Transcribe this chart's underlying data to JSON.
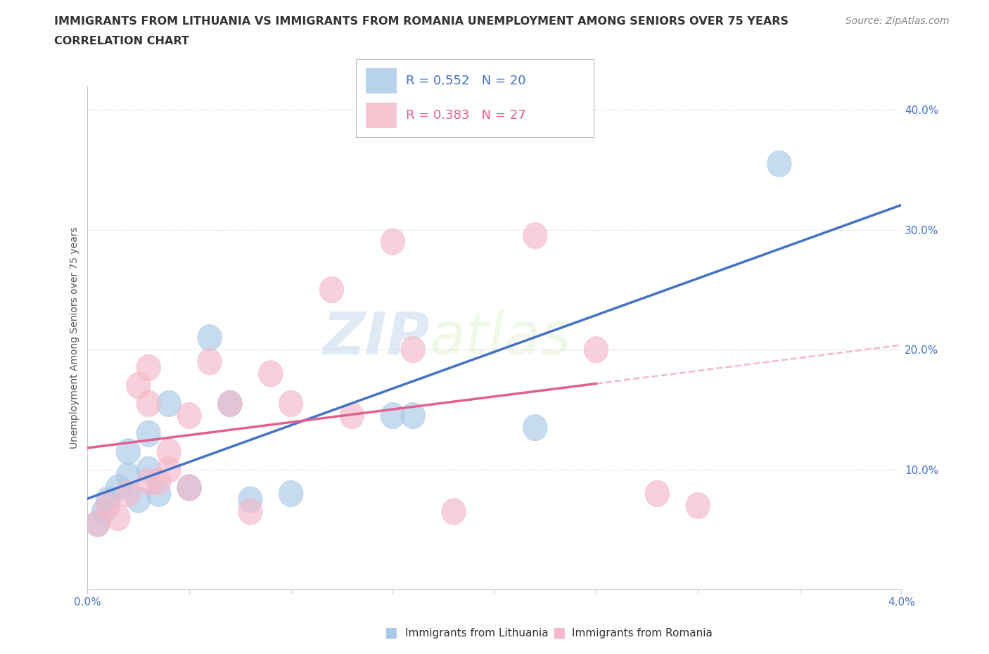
{
  "title_line1": "IMMIGRANTS FROM LITHUANIA VS IMMIGRANTS FROM ROMANIA UNEMPLOYMENT AMONG SENIORS OVER 75 YEARS",
  "title_line2": "CORRELATION CHART",
  "source_text": "Source: ZipAtlas.com",
  "ylabel": "Unemployment Among Seniors over 75 years",
  "xlim": [
    0.0,
    0.04
  ],
  "ylim": [
    0.0,
    0.42
  ],
  "xticks": [
    0.0,
    0.005,
    0.01,
    0.015,
    0.02,
    0.025,
    0.03,
    0.035,
    0.04
  ],
  "xticklabels": [
    "0.0%",
    "",
    "",
    "",
    "",
    "",
    "",
    "",
    "4.0%"
  ],
  "yticks": [
    0.1,
    0.2,
    0.3,
    0.4
  ],
  "yticklabels": [
    "10.0%",
    "20.0%",
    "30.0%",
    "40.0%"
  ],
  "grid_color": "#cccccc",
  "watermark_zip": "ZIP",
  "watermark_atlas": "atlas",
  "legend_text1": "R = 0.552   N = 20",
  "legend_text2": "R = 0.383   N = 27",
  "blue_color": "#a8c8e8",
  "pink_color": "#f4b8c8",
  "blue_line_color": "#4472C4",
  "pink_line_color": "#E06090",
  "pink_dash_color": "#f4b8c8",
  "tick_color": "#4472C4",
  "legend_text_blue_color": "#4472C4",
  "legend_text_pink_color": "#E06090",
  "title_color": "#333333",
  "source_color": "#888888",
  "ylabel_color": "#555555",
  "lithuania_x": [
    0.0005,
    0.0008,
    0.001,
    0.0015,
    0.002,
    0.002,
    0.0025,
    0.003,
    0.003,
    0.0035,
    0.004,
    0.005,
    0.006,
    0.007,
    0.008,
    0.01,
    0.015,
    0.016,
    0.022,
    0.034
  ],
  "lithuania_y": [
    0.055,
    0.065,
    0.075,
    0.085,
    0.095,
    0.115,
    0.075,
    0.1,
    0.13,
    0.08,
    0.155,
    0.085,
    0.21,
    0.155,
    0.075,
    0.08,
    0.145,
    0.145,
    0.135,
    0.355
  ],
  "romania_x": [
    0.0005,
    0.001,
    0.0015,
    0.002,
    0.0025,
    0.003,
    0.003,
    0.003,
    0.0035,
    0.004,
    0.004,
    0.005,
    0.005,
    0.006,
    0.007,
    0.008,
    0.009,
    0.01,
    0.012,
    0.013,
    0.015,
    0.016,
    0.018,
    0.022,
    0.025,
    0.028,
    0.03
  ],
  "romania_y": [
    0.055,
    0.07,
    0.06,
    0.08,
    0.17,
    0.09,
    0.155,
    0.185,
    0.09,
    0.1,
    0.115,
    0.085,
    0.145,
    0.19,
    0.155,
    0.065,
    0.18,
    0.155,
    0.25,
    0.145,
    0.29,
    0.2,
    0.065,
    0.295,
    0.2,
    0.08,
    0.07
  ],
  "title_fontsize": 11.5,
  "axis_label_fontsize": 10,
  "tick_fontsize": 11,
  "source_fontsize": 10,
  "legend_fontsize": 13
}
